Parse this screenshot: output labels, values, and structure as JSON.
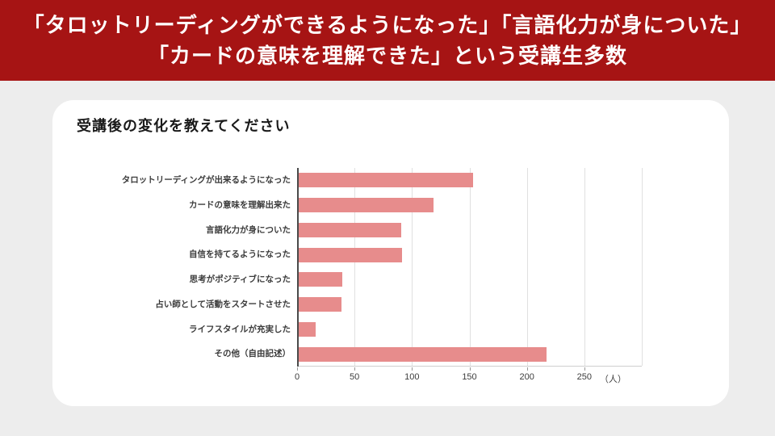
{
  "header": {
    "line1": "「タロットリーディングができるようになった」「言語化力が身についた」",
    "line2": "「カードの意味を理解できた」という受講生多数"
  },
  "colors": {
    "header_bg": "#a61414",
    "header_text": "#ffffff",
    "page_bg": "#ededed",
    "card_bg": "#ffffff",
    "bar": "#e78c8c",
    "gridline": "#e0e0e0",
    "axis_line": "#4a4a4a",
    "label_text": "#3c3c3c",
    "tick_text": "#3c3c3c"
  },
  "chart_data": {
    "type": "bar",
    "orientation": "horizontal",
    "title": "受講後の変化を教えてください",
    "categories": [
      "タロットリーディングが出来るようになった",
      "カードの意味を理解出来た",
      "言語化力が身についた",
      "自信を持てるようになった",
      "思考がポジティブになった",
      "占い師として活動をスタートさせた",
      "ライフスタイルが充実した",
      "その他（自由記述）"
    ],
    "values": [
      152,
      117,
      89,
      90,
      38,
      37,
      15,
      216
    ],
    "xlabel": "",
    "ylabel": "",
    "xlim": [
      0,
      300
    ],
    "xticks": [
      0,
      50,
      100,
      150,
      200,
      250
    ],
    "unit_label": "（人）",
    "unit_label_x": 275,
    "grid": true,
    "legend_position": "none"
  }
}
